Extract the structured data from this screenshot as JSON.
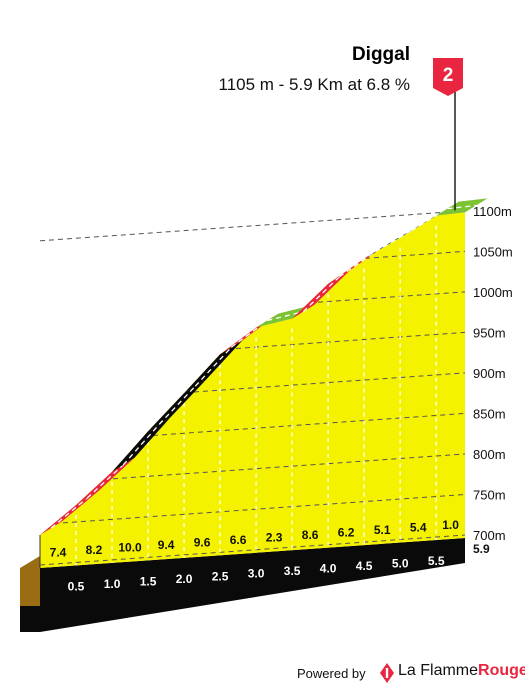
{
  "header": {
    "climb_name": "Diggal",
    "summary": "1105 m - 5.9 Km at 6.8 %",
    "category_badge": "2"
  },
  "footer": {
    "powered_by": "Powered by",
    "brand_part1": "La Flamme",
    "brand_part2": "Rouge"
  },
  "colors": {
    "fill": "#f5f200",
    "base_front": "#9a6d12",
    "base_strip": "#0a0a0a",
    "badge": "#e8263f",
    "grade_4_5": "#7cc334",
    "grade_5_6": "#1c4f7c",
    "grade_6_7": "#e8263f",
    "grade_9_plus": "#0a0a0a"
  },
  "chart_data": {
    "type": "area",
    "xlabel": "",
    "ylabel": "",
    "y_ticks": [
      "700m",
      "750m",
      "800m",
      "850m",
      "900m",
      "950m",
      "1000m",
      "1050m",
      "1100m"
    ],
    "y_tick_values": [
      700,
      750,
      800,
      850,
      900,
      950,
      1000,
      1050,
      1100
    ],
    "km_labels": [
      "0.5",
      "1.0",
      "1.5",
      "2.0",
      "2.5",
      "3.0",
      "3.5",
      "4.0",
      "4.5",
      "5.0",
      "5.5",
      "5.9"
    ],
    "km_values": [
      0.5,
      1.0,
      1.5,
      2.0,
      2.5,
      3.0,
      3.5,
      4.0,
      4.5,
      5.0,
      5.5,
      5.9
    ],
    "segment_gradients": [
      "7.4",
      "8.2",
      "10.0",
      "9.4",
      "9.6",
      "6.6",
      "2.3",
      "8.6",
      "6.2",
      "5.1",
      "5.4",
      "1.0"
    ],
    "profile": [
      {
        "km": 0.0,
        "elevation": 700
      },
      {
        "km": 0.5,
        "elevation": 737
      },
      {
        "km": 1.0,
        "elevation": 778
      },
      {
        "km": 1.5,
        "elevation": 828
      },
      {
        "km": 2.0,
        "elevation": 875
      },
      {
        "km": 2.5,
        "elevation": 923
      },
      {
        "km": 3.0,
        "elevation": 956
      },
      {
        "km": 3.5,
        "elevation": 967
      },
      {
        "km": 4.0,
        "elevation": 1010
      },
      {
        "km": 4.5,
        "elevation": 1041
      },
      {
        "km": 5.0,
        "elevation": 1067
      },
      {
        "km": 5.5,
        "elevation": 1094
      },
      {
        "km": 5.9,
        "elevation": 1098
      }
    ],
    "summit_elevation": 1105,
    "total_km": 5.9,
    "avg_gradient": 6.8
  }
}
